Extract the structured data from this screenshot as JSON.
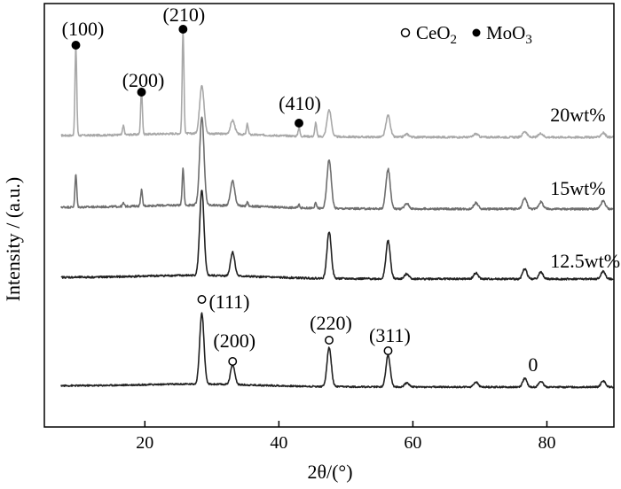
{
  "chart_data": {
    "type": "line",
    "xlabel": "2θ/(°)",
    "ylabel": "Intensity / (a.u.)",
    "xlim": [
      5,
      90
    ],
    "xticks": [
      20,
      40,
      60,
      80
    ],
    "yticks": "none",
    "legend": {
      "placement": "top-right",
      "items": [
        {
          "marker": "open-circle",
          "label": "CeO2"
        },
        {
          "marker": "filled-circle",
          "label": "MoO3"
        }
      ]
    },
    "peaks": {
      "CeO2": [
        {
          "x": 28.5,
          "h": 1.0
        },
        {
          "x": 33.1,
          "h": 0.28
        },
        {
          "x": 47.5,
          "h": 0.55
        },
        {
          "x": 56.3,
          "h": 0.45
        },
        {
          "x": 59.1,
          "h": 0.06
        },
        {
          "x": 69.4,
          "h": 0.07
        },
        {
          "x": 76.7,
          "h": 0.12
        },
        {
          "x": 79.1,
          "h": 0.08
        },
        {
          "x": 88.4,
          "h": 0.09
        }
      ],
      "MoO3": [
        {
          "x": 9.7,
          "h": 1.0
        },
        {
          "x": 16.8,
          "h": 0.1
        },
        {
          "x": 19.5,
          "h": 0.5
        },
        {
          "x": 25.7,
          "h": 1.15
        },
        {
          "x": 35.3,
          "h": 0.12
        },
        {
          "x": 43.0,
          "h": 0.1
        },
        {
          "x": 45.5,
          "h": 0.16
        }
      ]
    },
    "series": [
      {
        "name": "20wt%",
        "ceo2_scale": 0.55,
        "moo3_scale": 1.0,
        "color": "#a8a8a8"
      },
      {
        "name": "15wt%",
        "ceo2_scale": 0.95,
        "moo3_scale": 0.35,
        "color": "#6e6e6e"
      },
      {
        "name": "12.5wt%",
        "ceo2_scale": 1.0,
        "moo3_scale": 0.0,
        "color": "#222222"
      },
      {
        "name": "0",
        "ceo2_scale": 1.0,
        "moo3_scale": 0.0,
        "color": "#222222"
      }
    ],
    "annotations": [
      {
        "text": "(100)",
        "x": 9.7,
        "phase": "MoO3",
        "series": "20wt%"
      },
      {
        "text": "(200)",
        "x": 19.5,
        "phase": "MoO3",
        "series": "20wt%"
      },
      {
        "text": "(210)",
        "x": 25.7,
        "phase": "MoO3",
        "series": "20wt%"
      },
      {
        "text": "(410)",
        "x": 43.0,
        "phase": "MoO3",
        "series": "20wt%"
      },
      {
        "text": "(111)",
        "x": 28.5,
        "phase": "CeO2",
        "series": "0"
      },
      {
        "text": "(200)",
        "x": 33.1,
        "phase": "CeO2",
        "series": "0"
      },
      {
        "text": "(220)",
        "x": 47.5,
        "phase": "CeO2",
        "series": "0"
      },
      {
        "text": "(311)",
        "x": 56.3,
        "phase": "CeO2",
        "series": "0"
      }
    ]
  }
}
